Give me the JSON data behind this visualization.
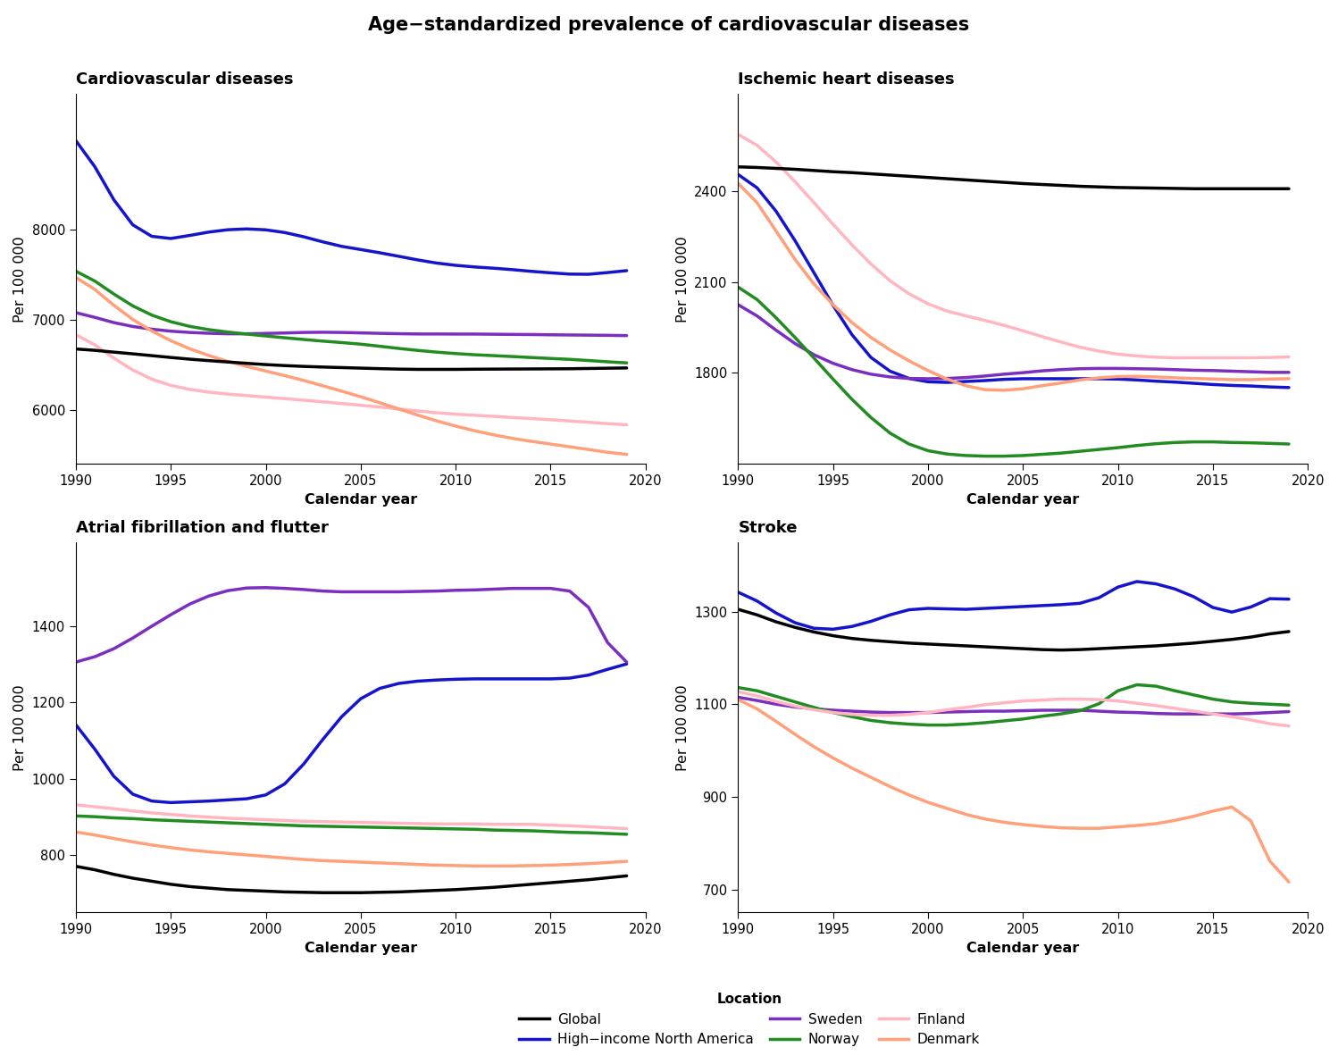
{
  "title": "Age−standardized prevalence of cardiovascular diseases",
  "subplots": [
    {
      "title": "Cardiovascular diseases",
      "ylabel": "Per 100 000",
      "xlabel": "Calendar year",
      "ylim": [
        5400,
        9500
      ],
      "yticks": [
        6000,
        7000,
        8000
      ],
      "series": {
        "Global": [
          6680,
          6660,
          6640,
          6620,
          6600,
          6580,
          6560,
          6545,
          6530,
          6515,
          6500,
          6490,
          6480,
          6475,
          6468,
          6462,
          6456,
          6450,
          6448,
          6448,
          6448,
          6450,
          6452,
          6453,
          6454,
          6455,
          6455,
          6458,
          6462,
          6465
        ],
        "High-income North America": [
          9100,
          8700,
          8300,
          7980,
          7900,
          7870,
          7940,
          7970,
          8000,
          8010,
          8000,
          7970,
          7920,
          7860,
          7800,
          7780,
          7740,
          7700,
          7660,
          7620,
          7600,
          7580,
          7570,
          7555,
          7530,
          7520,
          7500,
          7490,
          7520,
          7550
        ],
        "Sweden": [
          7100,
          7020,
          6960,
          6920,
          6890,
          6870,
          6855,
          6848,
          6840,
          6842,
          6845,
          6852,
          6858,
          6862,
          6858,
          6852,
          6848,
          6842,
          6840,
          6840,
          6840,
          6840,
          6838,
          6836,
          6834,
          6832,
          6830,
          6828,
          6825,
          6822
        ],
        "Norway": [
          7580,
          7430,
          7280,
          7140,
          7040,
          6970,
          6920,
          6885,
          6860,
          6840,
          6818,
          6798,
          6778,
          6762,
          6745,
          6730,
          6705,
          6680,
          6658,
          6638,
          6622,
          6610,
          6600,
          6590,
          6580,
          6570,
          6560,
          6548,
          6532,
          6515
        ],
        "Finland": [
          6880,
          6720,
          6570,
          6430,
          6330,
          6265,
          6220,
          6195,
          6175,
          6158,
          6142,
          6125,
          6108,
          6090,
          6070,
          6052,
          6032,
          6010,
          5988,
          5967,
          5952,
          5940,
          5928,
          5916,
          5904,
          5892,
          5878,
          5864,
          5848,
          5830
        ],
        "Denmark": [
          7520,
          7340,
          7150,
          6990,
          6870,
          6760,
          6670,
          6600,
          6535,
          6480,
          6430,
          6380,
          6328,
          6268,
          6208,
          6148,
          6080,
          6010,
          5942,
          5876,
          5818,
          5768,
          5722,
          5682,
          5650,
          5622,
          5592,
          5562,
          5530,
          5498
        ]
      }
    },
    {
      "title": "Ischemic heart diseases",
      "ylabel": "Per 100 000",
      "xlabel": "Calendar year",
      "ylim": [
        1500,
        2720
      ],
      "yticks": [
        1800,
        2100,
        2400
      ],
      "series": {
        "Global": [
          2480,
          2478,
          2475,
          2472,
          2468,
          2464,
          2460,
          2456,
          2452,
          2448,
          2444,
          2440,
          2436,
          2432,
          2428,
          2424,
          2421,
          2418,
          2415,
          2413,
          2411,
          2410,
          2409,
          2408,
          2408,
          2407,
          2407,
          2407,
          2408,
          2408
        ],
        "High-income North America": [
          2470,
          2420,
          2340,
          2240,
          2130,
          2020,
          1920,
          1840,
          1800,
          1780,
          1768,
          1768,
          1772,
          1776,
          1780,
          1782,
          1782,
          1782,
          1782,
          1782,
          1782,
          1778,
          1774,
          1770,
          1766,
          1762,
          1760,
          1757,
          1754,
          1752
        ],
        "Sweden": [
          2040,
          1990,
          1940,
          1895,
          1858,
          1830,
          1810,
          1795,
          1785,
          1782,
          1780,
          1782,
          1785,
          1790,
          1796,
          1802,
          1808,
          1812,
          1815,
          1816,
          1816,
          1815,
          1814,
          1812,
          1810,
          1808,
          1806,
          1804,
          1802,
          1802
        ],
        "Norway": [
          2100,
          2045,
          1985,
          1918,
          1850,
          1780,
          1712,
          1650,
          1598,
          1562,
          1540,
          1532,
          1528,
          1526,
          1526,
          1528,
          1532,
          1536,
          1542,
          1548,
          1555,
          1562,
          1568,
          1572,
          1574,
          1574,
          1572,
          1570,
          1568,
          1566
        ],
        "Finland": [
          2600,
          2555,
          2498,
          2432,
          2362,
          2290,
          2220,
          2158,
          2100,
          2058,
          2025,
          2002,
          1988,
          1975,
          1958,
          1940,
          1920,
          1902,
          1885,
          1870,
          1862,
          1856,
          1852,
          1850,
          1850,
          1850,
          1850,
          1850,
          1852,
          1854
        ],
        "Denmark": [
          2450,
          2368,
          2268,
          2168,
          2090,
          2022,
          1964,
          1914,
          1875,
          1840,
          1808,
          1778,
          1755,
          1742,
          1740,
          1748,
          1758,
          1768,
          1778,
          1786,
          1790,
          1790,
          1788,
          1785,
          1782,
          1780,
          1778,
          1778,
          1780,
          1782
        ]
      }
    },
    {
      "title": "Atrial fibrillation and flutter",
      "ylabel": "Per 100 000",
      "xlabel": "Calendar year",
      "ylim": [
        650,
        1620
      ],
      "yticks": [
        800,
        1000,
        1200,
        1400
      ],
      "series": {
        "Global": [
          775,
          762,
          750,
          740,
          732,
          724,
          718,
          714,
          710,
          708,
          706,
          704,
          703,
          702,
          702,
          702,
          703,
          704,
          706,
          708,
          710,
          713,
          716,
          720,
          724,
          728,
          732,
          736,
          742,
          748
        ],
        "High-income North America": [
          1170,
          1075,
          998,
          950,
          938,
          938,
          940,
          942,
          945,
          948,
          952,
          978,
          1035,
          1105,
          1168,
          1218,
          1242,
          1252,
          1257,
          1260,
          1262,
          1263,
          1263,
          1263,
          1263,
          1262,
          1262,
          1270,
          1286,
          1308
        ],
        "Sweden": [
          1302,
          1318,
          1340,
          1368,
          1400,
          1432,
          1460,
          1482,
          1496,
          1502,
          1502,
          1500,
          1496,
          1492,
          1490,
          1490,
          1490,
          1490,
          1491,
          1492,
          1494,
          1496,
          1498,
          1500,
          1500,
          1500,
          1498,
          1490,
          1322,
          1295
        ],
        "Norway": [
          904,
          902,
          899,
          896,
          893,
          891,
          889,
          887,
          885,
          883,
          881,
          879,
          877,
          876,
          875,
          874,
          873,
          872,
          871,
          870,
          869,
          868,
          867,
          866,
          865,
          863,
          861,
          859,
          857,
          855
        ],
        "Finland": [
          934,
          928,
          922,
          916,
          911,
          907,
          903,
          900,
          897,
          895,
          893,
          891,
          889,
          888,
          887,
          886,
          885,
          884,
          883,
          882,
          882,
          882,
          882,
          882,
          882,
          880,
          878,
          875,
          873,
          870
        ],
        "Denmark": [
          864,
          854,
          844,
          835,
          827,
          820,
          814,
          809,
          805,
          801,
          797,
          793,
          789,
          786,
          784,
          782,
          780,
          778,
          776,
          774,
          773,
          772,
          772,
          772,
          773,
          774,
          776,
          778,
          782,
          786
        ]
      }
    },
    {
      "title": "Stroke",
      "ylabel": "Per 100 000",
      "xlabel": "Calendar year",
      "ylim": [
        650,
        1450
      ],
      "yticks": [
        700,
        900,
        1100,
        1300
      ],
      "series": {
        "Global": [
          1310,
          1293,
          1278,
          1266,
          1256,
          1248,
          1242,
          1238,
          1235,
          1232,
          1230,
          1228,
          1226,
          1225,
          1223,
          1220,
          1218,
          1217,
          1218,
          1220,
          1222,
          1224,
          1226,
          1229,
          1232,
          1236,
          1240,
          1245,
          1252,
          1260
        ],
        "High-income North America": [
          1350,
          1325,
          1296,
          1272,
          1262,
          1260,
          1268,
          1278,
          1295,
          1308,
          1310,
          1305,
          1305,
          1308,
          1310,
          1312,
          1313,
          1315,
          1317,
          1321,
          1362,
          1372,
          1360,
          1350,
          1340,
          1300,
          1295,
          1302,
          1345,
          1322
        ],
        "Sweden": [
          1118,
          1108,
          1100,
          1094,
          1090,
          1087,
          1085,
          1083,
          1082,
          1082,
          1082,
          1083,
          1084,
          1085,
          1086,
          1087,
          1088,
          1088,
          1088,
          1086,
          1084,
          1082,
          1080,
          1079,
          1079,
          1079,
          1079,
          1080,
          1082,
          1085
        ],
        "Norway": [
          1140,
          1130,
          1118,
          1105,
          1093,
          1082,
          1073,
          1065,
          1060,
          1057,
          1055,
          1055,
          1057,
          1060,
          1064,
          1068,
          1074,
          1080,
          1086,
          1090,
          1140,
          1148,
          1140,
          1130,
          1120,
          1110,
          1105,
          1103,
          1100,
          1098
        ],
        "Finland": [
          1132,
          1118,
          1106,
          1096,
          1088,
          1082,
          1078,
          1076,
          1076,
          1078,
          1082,
          1088,
          1094,
          1100,
          1104,
          1108,
          1110,
          1112,
          1112,
          1112,
          1108,
          1103,
          1098,
          1092,
          1086,
          1080,
          1074,
          1066,
          1058,
          1052
        ],
        "Denmark": [
          1118,
          1092,
          1063,
          1035,
          1008,
          984,
          962,
          942,
          922,
          904,
          888,
          875,
          862,
          852,
          845,
          840,
          836,
          833,
          832,
          832,
          835,
          838,
          842,
          848,
          858,
          869,
          882,
          898,
          720,
          710
        ]
      }
    }
  ],
  "years": [
    1990,
    1991,
    1992,
    1993,
    1994,
    1995,
    1996,
    1997,
    1998,
    1999,
    2000,
    2001,
    2002,
    2003,
    2004,
    2005,
    2006,
    2007,
    2008,
    2009,
    2010,
    2011,
    2012,
    2013,
    2014,
    2015,
    2016,
    2017,
    2018,
    2019
  ],
  "colors": {
    "Global": "#000000",
    "High-income North America": "#1414CC",
    "Sweden": "#7B2FBE",
    "Norway": "#228B22",
    "Finland": "#FFB6C1",
    "Denmark": "#FFA07A"
  },
  "legend_title": "Location",
  "linewidth": 2.5
}
